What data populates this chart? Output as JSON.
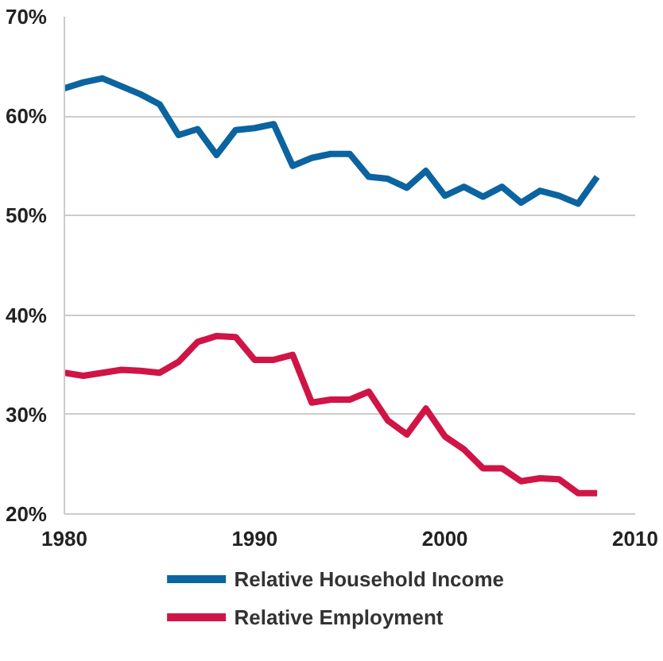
{
  "chart_data": {
    "type": "line",
    "x": [
      1980,
      1981,
      1982,
      1983,
      1984,
      1985,
      1986,
      1987,
      1988,
      1989,
      1990,
      1991,
      1992,
      1993,
      1994,
      1995,
      1996,
      1997,
      1998,
      1999,
      2000,
      2001,
      2002,
      2003,
      2004,
      2005,
      2006,
      2007,
      2008
    ],
    "series": [
      {
        "name": "Relative Household Income",
        "color": "#0b64a0",
        "values": [
          62.8,
          63.4,
          63.8,
          63.0,
          62.2,
          61.2,
          58.1,
          58.7,
          56.1,
          58.6,
          58.8,
          59.2,
          55.0,
          55.8,
          56.2,
          56.2,
          53.9,
          53.7,
          52.8,
          54.5,
          52.0,
          52.9,
          51.9,
          52.9,
          51.3,
          52.5,
          52.0,
          51.2,
          53.9
        ]
      },
      {
        "name": "Relative Employment",
        "color": "#d01446",
        "values": [
          34.2,
          33.9,
          34.2,
          34.5,
          34.4,
          34.2,
          35.3,
          37.3,
          37.9,
          37.8,
          35.5,
          35.5,
          36.0,
          31.2,
          31.5,
          31.5,
          32.3,
          29.4,
          28.0,
          30.6,
          27.8,
          26.5,
          24.6,
          24.6,
          23.3,
          23.6,
          23.5,
          22.1,
          22.1
        ]
      }
    ],
    "xlim": [
      1980,
      2010
    ],
    "xticks": [
      1980,
      1990,
      2000,
      2010
    ],
    "ylim": [
      20,
      70
    ],
    "yticks": [
      {
        "value": 20,
        "label": "20%"
      },
      {
        "value": 30,
        "label": "30%"
      },
      {
        "value": 40,
        "label": "40%"
      },
      {
        "value": 50,
        "label": "50%"
      },
      {
        "value": 60,
        "label": "60%"
      },
      {
        "value": 70,
        "label": "70%"
      }
    ],
    "grid": "y",
    "legend": "bottom",
    "marker": "none",
    "line_style": "solid"
  }
}
